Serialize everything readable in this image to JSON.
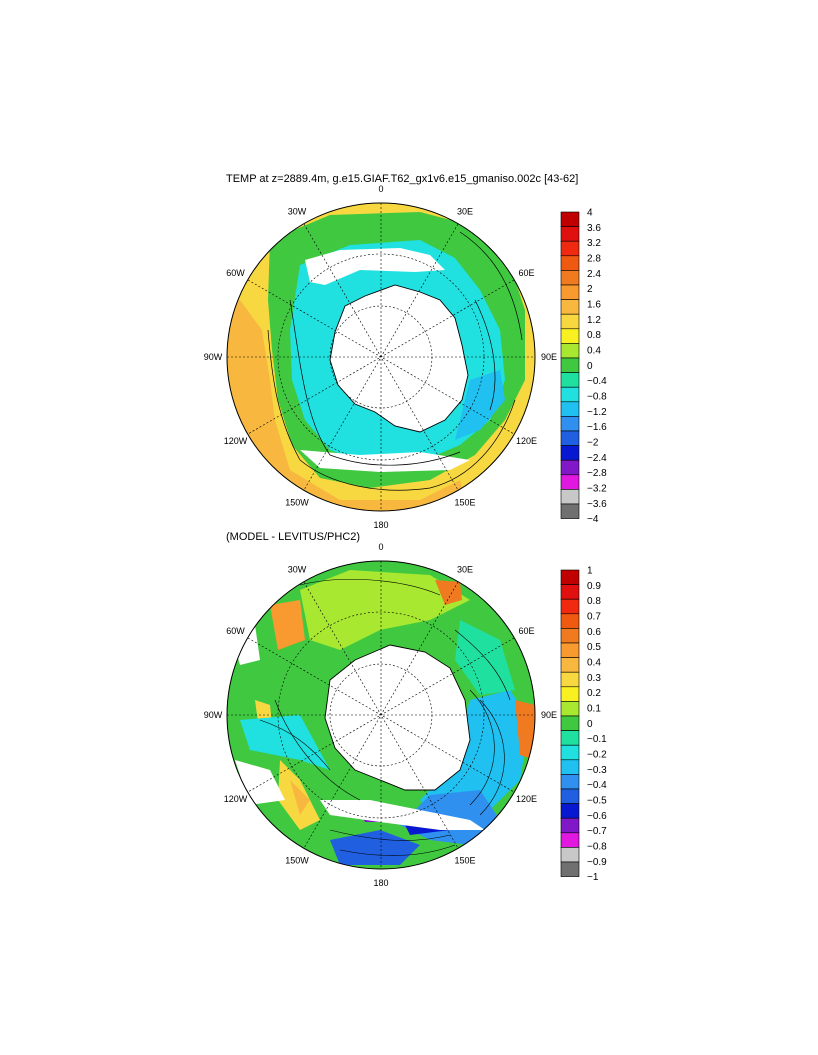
{
  "panels": [
    {
      "title": "TEMP at z=2889.4m, g.e15.GIAF.T62_gx1v6.e15_gmaniso.002c [43-62]",
      "longitude_labels": [
        "0",
        "30E",
        "60E",
        "90E",
        "120E",
        "150E",
        "180",
        "150W",
        "120W",
        "90W",
        "60W",
        "30W"
      ],
      "colorbar": {
        "labels": [
          "4",
          "3.6",
          "3.2",
          "2.8",
          "2.4",
          "2",
          "1.6",
          "1.2",
          "0.8",
          "0.4",
          "0",
          "−0.4",
          "−0.8",
          "−1.2",
          "−1.6",
          "−2",
          "−2.4",
          "−2.8",
          "−3.2",
          "−3.6",
          "−4"
        ],
        "colors": [
          "#c00000",
          "#e01010",
          "#f02a10",
          "#f05a10",
          "#f07a20",
          "#f89a30",
          "#f8b840",
          "#f8d840",
          "#f8f020",
          "#a8e830",
          "#40c840",
          "#20e0a0",
          "#20e0e0",
          "#20c0f0",
          "#3090f0",
          "#2060e0",
          "#0818d0",
          "#8018c8",
          "#e018e0",
          "#c8c8c8",
          "#707070"
        ]
      }
    },
    {
      "title": "(MODEL - LEVITUS/PHC2)",
      "longitude_labels": [
        "0",
        "30E",
        "60E",
        "90E",
        "120E",
        "150E",
        "180",
        "150W",
        "120W",
        "90W",
        "60W",
        "30W"
      ],
      "colorbar": {
        "labels": [
          "1",
          "0.9",
          "0.8",
          "0.7",
          "0.6",
          "0.5",
          "0.4",
          "0.3",
          "0.2",
          "0.1",
          "0",
          "−0.1",
          "−0.2",
          "−0.3",
          "−0.4",
          "−0.5",
          "−0.6",
          "−0.7",
          "−0.8",
          "−0.9",
          "−1"
        ],
        "colors": [
          "#c00000",
          "#e01010",
          "#f02a10",
          "#f05a10",
          "#f07a20",
          "#f89a30",
          "#f8b840",
          "#f8d840",
          "#f8f020",
          "#a8e830",
          "#40c840",
          "#20e0a0",
          "#20e0e0",
          "#20c0f0",
          "#3090f0",
          "#2060e0",
          "#0818d0",
          "#8018c8",
          "#e018e0",
          "#c8c8c8",
          "#707070"
        ]
      }
    }
  ]
}
